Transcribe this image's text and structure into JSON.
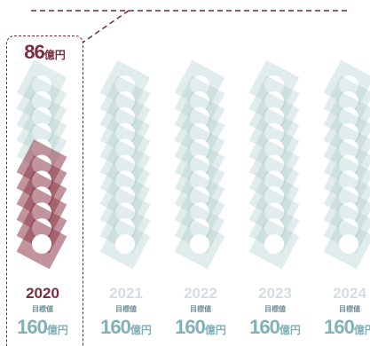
{
  "chart_data": {
    "type": "bar",
    "categories": [
      "2020",
      "2021",
      "2022",
      "2023",
      "2024"
    ],
    "target_label": "目標値",
    "target_values": [
      160,
      160,
      160,
      160,
      160
    ],
    "actual_values": [
      86,
      null,
      null,
      null,
      null
    ],
    "unit": "億円",
    "actual_label": "86",
    "target_texts": [
      "160",
      "160",
      "160",
      "160",
      "160"
    ],
    "highlight_category": "2020",
    "ylim": [
      0,
      160
    ]
  },
  "colors": {
    "accent": "#7a2e3c",
    "accent_fill": "#8e3a4a",
    "target_fill": "#a8c8c9",
    "muted_text": "#d4dee0",
    "label_text": "#6f8f95",
    "value_text": "#7fb1b8"
  }
}
